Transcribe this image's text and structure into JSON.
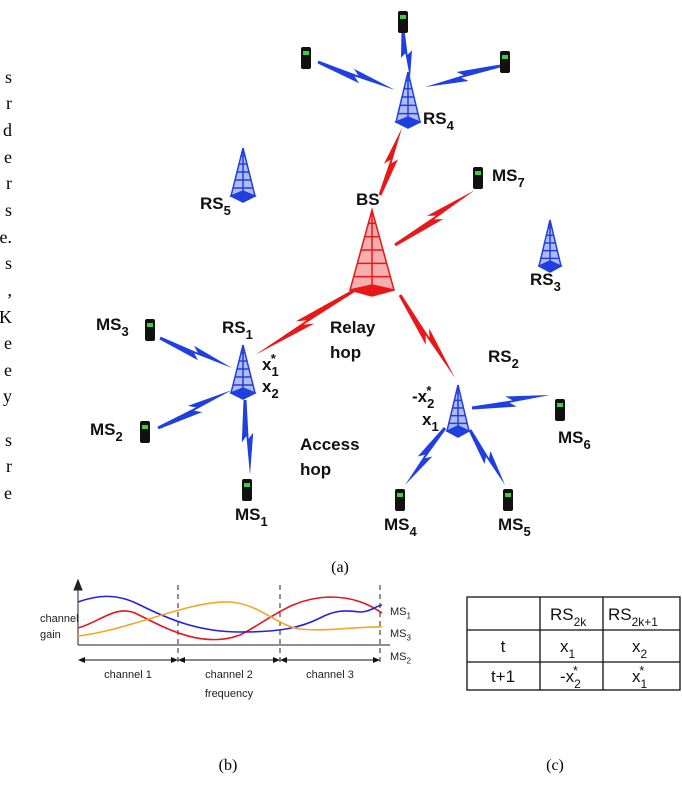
{
  "margin_text": [
    "s",
    "r",
    "d",
    "e",
    "r",
    "s",
    "e.",
    "s",
    ",",
    "K",
    "e",
    "e",
    "y",
    "s",
    "r",
    "e"
  ],
  "figure_a": {
    "base_station": "BS",
    "relay_stations": [
      {
        "base": "RS",
        "sub": "1"
      },
      {
        "base": "RS",
        "sub": "2"
      },
      {
        "base": "RS",
        "sub": "3"
      },
      {
        "base": "RS",
        "sub": "4"
      },
      {
        "base": "RS",
        "sub": "5"
      }
    ],
    "mobile_stations": [
      {
        "base": "MS",
        "sub": "1"
      },
      {
        "base": "MS",
        "sub": "2"
      },
      {
        "base": "MS",
        "sub": "3"
      },
      {
        "base": "MS",
        "sub": "4"
      },
      {
        "base": "MS",
        "sub": "5"
      },
      {
        "base": "MS",
        "sub": "6"
      },
      {
        "base": "MS",
        "sub": "7"
      }
    ],
    "relay_hop": [
      "Relay",
      "hop"
    ],
    "access_hop": [
      "Access",
      "hop"
    ],
    "symbols_rs1": [
      {
        "base": "x",
        "sub": "1",
        "sup": "*"
      },
      {
        "base": "x",
        "sub": "2"
      }
    ],
    "symbols_rs2": [
      {
        "base": "-x",
        "sub": "2",
        "sup": "*"
      },
      {
        "base": "x",
        "sub": "1"
      }
    ],
    "caption": "(a)"
  },
  "figure_b": {
    "y_label": [
      "channel",
      "gain"
    ],
    "x_label": "frequency",
    "channels": [
      "channel 1",
      "channel 2",
      "channel 3"
    ],
    "curves": [
      {
        "base": "MS",
        "sub": "1",
        "color": "#e8141c"
      },
      {
        "base": "MS",
        "sub": "3",
        "color": "#2222dd"
      },
      {
        "base": "MS",
        "sub": "2",
        "color": "#f5a623"
      }
    ],
    "caption": "(b)"
  },
  "table_c": {
    "header": [
      {
        "base": "RS",
        "sub": "2k"
      },
      {
        "base": "RS",
        "sub": "2k+1"
      }
    ],
    "rows": [
      {
        "label": "t",
        "cells": [
          {
            "base": "x",
            "sub": "1"
          },
          {
            "base": "x",
            "sub": "2"
          }
        ]
      },
      {
        "label": "t+1",
        "cells": [
          {
            "base": "-x",
            "sub": "2",
            "sup": "*"
          },
          {
            "base": "x",
            "sub": "1",
            "sup": "*"
          }
        ]
      }
    ],
    "caption": "(c)"
  }
}
